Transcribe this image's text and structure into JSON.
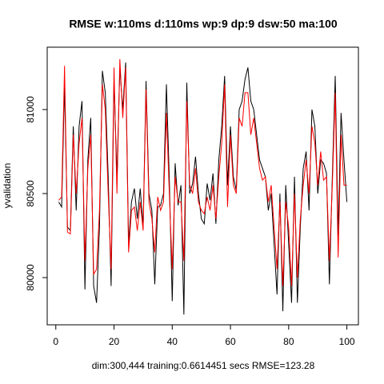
{
  "chart_data": {
    "type": "line",
    "title": "RMSE   w:110ms d:110ms wp:9 dp:9 dsw:50 ma:100",
    "x_label": "dim:300,444 training:0.6614451 secs RMSE=123.28",
    "y_label": "yvalidation",
    "x": [
      1,
      2,
      3,
      4,
      5,
      6,
      7,
      8,
      9,
      10,
      11,
      12,
      13,
      14,
      15,
      16,
      17,
      18,
      19,
      20,
      21,
      22,
      23,
      24,
      25,
      26,
      27,
      28,
      29,
      30,
      31,
      32,
      33,
      34,
      35,
      36,
      37,
      38,
      39,
      40,
      41,
      42,
      43,
      44,
      45,
      46,
      47,
      48,
      49,
      50,
      51,
      52,
      53,
      54,
      55,
      56,
      57,
      58,
      59,
      60,
      61,
      62,
      63,
      64,
      65,
      66,
      67,
      68,
      69,
      70,
      71,
      72,
      73,
      74,
      75,
      76,
      77,
      78,
      79,
      80,
      81,
      82,
      83,
      84,
      85,
      86,
      87,
      88,
      89,
      90,
      91,
      92,
      93,
      94,
      95,
      96,
      97,
      98,
      99,
      100
    ],
    "series": [
      {
        "color": "#000000",
        "values": [
          80450,
          80420,
          81150,
          80300,
          80280,
          80900,
          80400,
          80900,
          81050,
          79930,
          80700,
          80950,
          79950,
          79850,
          80300,
          81230,
          81100,
          80600,
          79950,
          81180,
          80600,
          81250,
          81000,
          81280,
          80200,
          80450,
          80530,
          80350,
          80530,
          80300,
          81170,
          80500,
          80400,
          79960,
          80420,
          80430,
          80500,
          81150,
          80580,
          79860,
          80680,
          80430,
          80550,
          79780,
          81160,
          80500,
          80560,
          80720,
          80500,
          80350,
          80320,
          80560,
          80460,
          80620,
          80320,
          80700,
          80900,
          81200,
          80550,
          80900,
          80600,
          80520,
          81000,
          81050,
          81180,
          81250,
          81050,
          81000,
          80850,
          80700,
          80650,
          80600,
          80400,
          80500,
          80200,
          79900,
          80500,
          79800,
          80550,
          80200,
          79850,
          80600,
          79850,
          80300,
          80650,
          80750,
          80400,
          81000,
          80900,
          80500,
          80700,
          80680,
          80620,
          79960,
          80600,
          81200,
          80250,
          80980,
          80700,
          80450
        ]
      },
      {
        "color": "#ff0000",
        "values": [
          80460,
          80480,
          81260,
          80270,
          80260,
          80850,
          80500,
          80800,
          80950,
          80100,
          80650,
          80850,
          80020,
          80050,
          80400,
          81150,
          81000,
          80500,
          80050,
          81250,
          80500,
          81300,
          80950,
          81250,
          80150,
          80400,
          80420,
          80280,
          80450,
          80280,
          81120,
          80450,
          80350,
          80150,
          80480,
          80400,
          80450,
          80980,
          80500,
          80050,
          80600,
          80450,
          80450,
          80100,
          81050,
          80550,
          80500,
          80650,
          80450,
          80400,
          80380,
          80480,
          80400,
          80550,
          80350,
          80600,
          80800,
          81150,
          80420,
          80850,
          80550,
          80500,
          80950,
          80900,
          81100,
          81100,
          80850,
          80950,
          80800,
          80650,
          80580,
          80600,
          80450,
          80550,
          80300,
          80050,
          80450,
          79950,
          80450,
          80300,
          79950,
          80500,
          80000,
          80350,
          80550,
          80700,
          80500,
          80900,
          80800,
          80550,
          80750,
          80580,
          80600,
          80100,
          80550,
          81100,
          80120,
          80850,
          80550,
          80550
        ]
      }
    ],
    "xlim": [
      -2.96,
      103.96
    ],
    "xticks": [
      0,
      20,
      40,
      60,
      80,
      100
    ],
    "ylim": [
      79719,
      81371
    ],
    "yticks": [
      80000,
      80500,
      81000
    ]
  }
}
